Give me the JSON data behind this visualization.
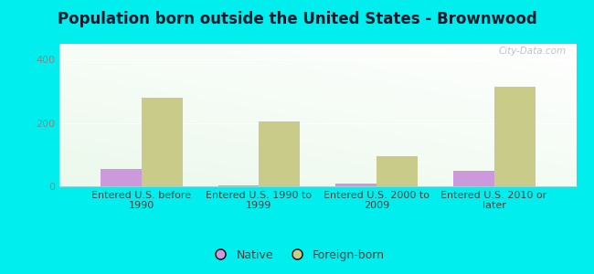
{
  "title": "Population born outside the United States - Brownwood",
  "categories": [
    "Entered U.S. before\n1990",
    "Entered U.S. 1990 to\n1999",
    "Entered U.S. 2000 to\n2009",
    "Entered U.S. 2010 or\nlater"
  ],
  "native_values": [
    55,
    2,
    8,
    50
  ],
  "foreign_values": [
    280,
    205,
    95,
    315
  ],
  "native_color": "#cc99dd",
  "foreign_color": "#c8cc88",
  "background_color": "#00eeee",
  "ylim": [
    0,
    450
  ],
  "yticks": [
    0,
    200,
    400
  ],
  "bar_width": 0.35,
  "title_fontsize": 12,
  "tick_fontsize": 8,
  "legend_labels": [
    "Native",
    "Foreign-born"
  ],
  "watermark": "City-Data.com"
}
